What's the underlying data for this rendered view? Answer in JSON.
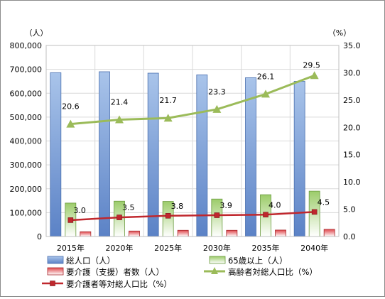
{
  "chart_data": {
    "type": "bar",
    "categories": [
      "2015年",
      "2020年",
      "2025年",
      "2030年",
      "2035年",
      "2040年"
    ],
    "left_axis": {
      "unit_label": "（人）",
      "range": [
        0,
        800000
      ],
      "ticks": [
        "0",
        "100,000",
        "200,000",
        "300,000",
        "400,000",
        "500,000",
        "600,000",
        "700,000",
        "800,000"
      ]
    },
    "right_axis": {
      "unit_label": "（%）",
      "range": [
        0,
        35
      ],
      "ticks": [
        "0.0",
        "5.0",
        "10.0",
        "15.0",
        "20.0",
        "25.0",
        "30.0",
        "35.0"
      ]
    },
    "grid": true,
    "legend_position": "bottom",
    "series": [
      {
        "name": "総人口（人）",
        "kind": "bar",
        "axis": "left",
        "color": "#7fa3d9",
        "values": [
          686000,
          690000,
          684000,
          677000,
          665000,
          650000
        ]
      },
      {
        "name": "65歳以上（人）",
        "kind": "bar",
        "axis": "left",
        "color": "#8cbf5e",
        "values": [
          140000,
          148000,
          147000,
          157000,
          175000,
          190000
        ]
      },
      {
        "name": "要介護（支援）者数（人）",
        "kind": "bar",
        "axis": "left",
        "color": "#d9454a",
        "values": [
          20000,
          23000,
          26000,
          26000,
          27000,
          30000
        ]
      },
      {
        "name": "高齢者対総人口比（%）",
        "kind": "line",
        "axis": "right",
        "color": "#9bbb59",
        "marker": "triangle",
        "values": [
          20.6,
          21.4,
          21.7,
          23.3,
          26.1,
          29.5
        ],
        "labels": [
          "20.6",
          "21.4",
          "21.7",
          "23.3",
          "26.1",
          "29.5"
        ]
      },
      {
        "name": "要介護者等対総人口比（%）",
        "kind": "line",
        "axis": "right",
        "color": "#c0272d",
        "marker": "square",
        "values": [
          3.0,
          3.5,
          3.8,
          3.9,
          4.0,
          4.5
        ],
        "labels": [
          "3.0",
          "3.5",
          "3.8",
          "3.9",
          "4.0",
          "4.5"
        ]
      }
    ]
  }
}
